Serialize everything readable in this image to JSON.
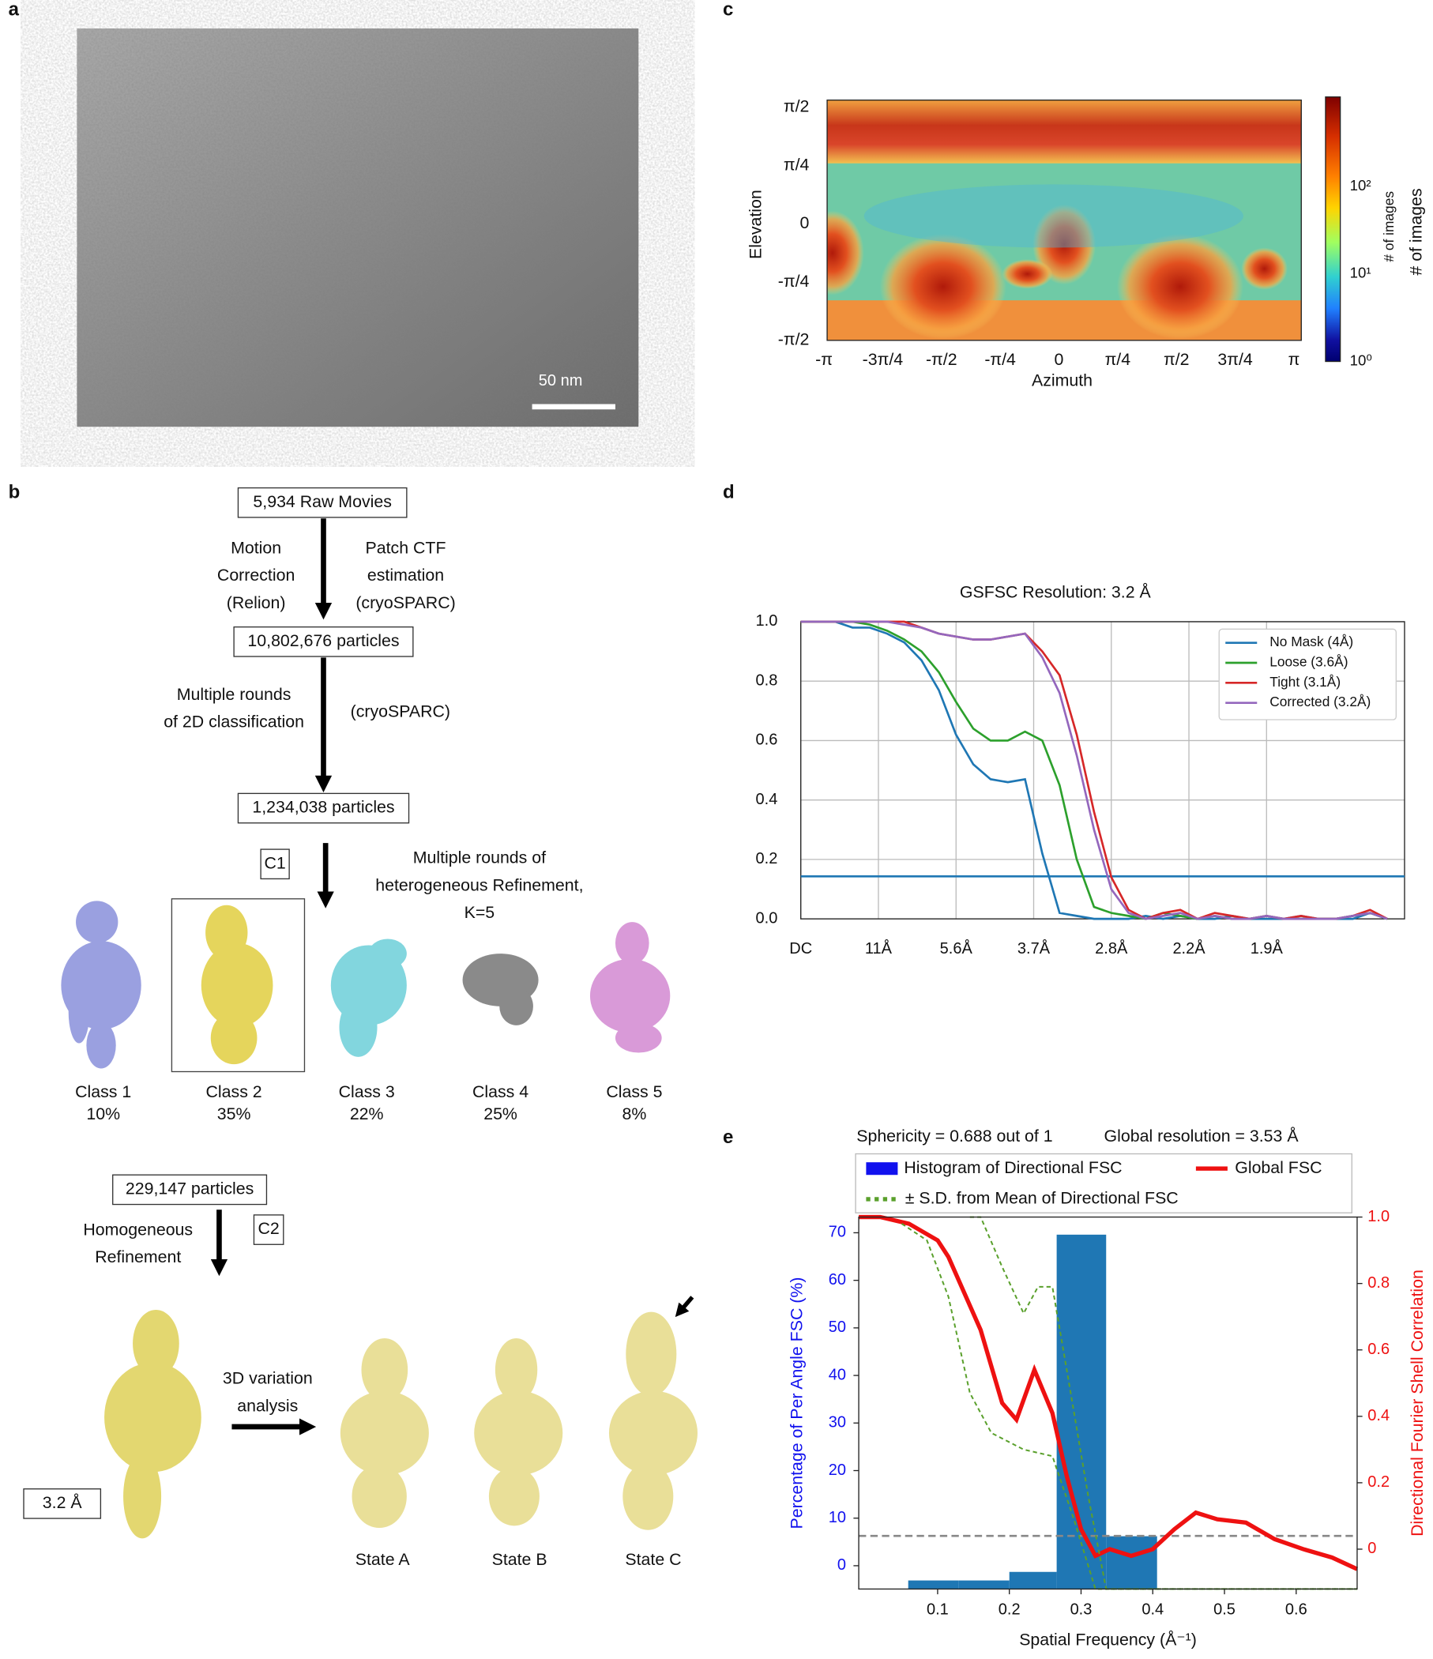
{
  "panel_labels": [
    "a",
    "b",
    "c",
    "d",
    "e"
  ],
  "micrograph": {
    "scale_bar": "50 nm"
  },
  "workflow": {
    "nodes": [
      "5,934 Raw Movies",
      "10,802,676 particles",
      "1,234,038 particles",
      "229,147 particles"
    ],
    "step1_left": [
      "Motion",
      "Correction",
      "(Relion)"
    ],
    "step1_right": [
      "Patch CTF",
      "estimation",
      "(cryoSPARC)"
    ],
    "step2_left": [
      "Multiple rounds",
      "of 2D classification"
    ],
    "step2_right": "(cryoSPARC)",
    "symmetry_1": "C1",
    "step3": [
      "Multiple rounds of",
      "heterogeneous Refinement,",
      "K=5"
    ],
    "classes": [
      {
        "name": "Class 1",
        "share": "10%"
      },
      {
        "name": "Class 2",
        "share": "35%"
      },
      {
        "name": "Class 3",
        "share": "22%"
      },
      {
        "name": "Class 4",
        "share": "25%"
      },
      {
        "name": "Class 5",
        "share": "8%"
      }
    ],
    "symmetry_2": "C2",
    "step4": [
      "Homogeneous",
      "Refinement"
    ],
    "resolution": "3.2 Å",
    "step5": [
      "3D variation",
      "analysis"
    ],
    "states": [
      "State A",
      "State B",
      "State C"
    ]
  },
  "viewing_distribution": {
    "y_ticks": [
      "π/2",
      "π/4",
      "0",
      "-π/4",
      "-π/2"
    ],
    "x_ticks": [
      "-π",
      "-3π/4",
      "-π/2",
      "-π/4",
      "0",
      "π/4",
      "π/2",
      "3π/4",
      "π"
    ],
    "x_label": "Azimuth",
    "y_label": "Elevation",
    "colorbar_ticks": [
      "10⁰",
      "10¹",
      "10²"
    ],
    "colorbar_label": "# of images"
  },
  "chart_data": [
    {
      "type": "line",
      "title": "GSFSC Resolution: 3.2 Å",
      "x": [
        0,
        0.02,
        0.04,
        0.06,
        0.08,
        0.1,
        0.12,
        0.14,
        0.16,
        0.18,
        0.2,
        0.22,
        0.24,
        0.26,
        0.28,
        0.3,
        0.32,
        0.34,
        0.36,
        0.38,
        0.4,
        0.42,
        0.44,
        0.46,
        0.48,
        0.5,
        0.52,
        0.54,
        0.56,
        0.58,
        0.6,
        0.62,
        0.64,
        0.66,
        0.68
      ],
      "xlim": [
        0,
        0.7
      ],
      "xticks": [
        {
          "value": 0,
          "label": "DC"
        },
        {
          "value": 0.09,
          "label": "11Å"
        },
        {
          "value": 0.18,
          "label": "5.6Å"
        },
        {
          "value": 0.27,
          "label": "3.7Å"
        },
        {
          "value": 0.36,
          "label": "2.8Å"
        },
        {
          "value": 0.45,
          "label": "2.2Å"
        },
        {
          "value": 0.54,
          "label": "1.9Å"
        }
      ],
      "ylim": [
        0,
        1
      ],
      "yticks": [
        {
          "value": 0,
          "label": "0.0"
        },
        0.2,
        0.4,
        0.6,
        0.8,
        {
          "value": 1,
          "label": "1.0"
        }
      ],
      "grid": true,
      "legend": "upper right",
      "threshold": 0.143,
      "threshold_color": "#1f77b4",
      "series": [
        {
          "name": "No Mask (4Å)",
          "color": "#1f77b4",
          "values": [
            1,
            1,
            1,
            0.98,
            0.98,
            0.96,
            0.93,
            0.87,
            0.77,
            0.62,
            0.52,
            0.47,
            0.46,
            0.47,
            0.22,
            0.02,
            0.01,
            0,
            0,
            0,
            0.01,
            0,
            0.01,
            0,
            0,
            0.01,
            0,
            0,
            0,
            0.01,
            0,
            0,
            0,
            0.02,
            0
          ]
        },
        {
          "name": "Loose (3.6Å)",
          "color": "#2ca02c",
          "values": [
            1,
            1,
            1,
            1,
            0.99,
            0.97,
            0.94,
            0.9,
            0.83,
            0.73,
            0.64,
            0.6,
            0.6,
            0.63,
            0.6,
            0.45,
            0.2,
            0.04,
            0.02,
            0.01,
            0,
            0.02,
            0.01,
            0,
            0.01,
            0,
            0,
            0.01,
            0,
            0,
            0,
            0,
            0.01,
            0.02,
            0
          ]
        },
        {
          "name": "Tight (3.1Å)",
          "color": "#d62728",
          "values": [
            1,
            1,
            1,
            1,
            1,
            1,
            1,
            0.98,
            0.96,
            0.95,
            0.94,
            0.94,
            0.95,
            0.96,
            0.9,
            0.82,
            0.62,
            0.36,
            0.14,
            0.03,
            0,
            0.02,
            0.03,
            0,
            0.02,
            0.01,
            0,
            0.01,
            0,
            0.01,
            0,
            0,
            0.01,
            0.03,
            0
          ]
        },
        {
          "name": "Corrected (3.2Å)",
          "color": "#9467bd",
          "values": [
            1,
            1,
            1,
            1,
            1,
            1,
            0.99,
            0.98,
            0.96,
            0.95,
            0.94,
            0.94,
            0.95,
            0.96,
            0.88,
            0.76,
            0.55,
            0.3,
            0.1,
            0.02,
            0,
            0.01,
            0.02,
            0,
            0.01,
            0,
            0,
            0.01,
            0,
            0,
            0,
            0,
            0.01,
            0.02,
            0
          ]
        }
      ]
    },
    {
      "type": "histogram",
      "title": "Sphericity = 0.688 out of 1",
      "subtitle": "Global resolution = 3.53 Å",
      "name": "Histogram of Directional FSC",
      "color": "#1f77b4",
      "bins": [
        0.059,
        0.129,
        0.2,
        0.266,
        0.335,
        0.406
      ],
      "values": [
        -3.1,
        -3.1,
        -1.3,
        69.6,
        6.2
      ],
      "x_label": "Spatial Frequency (Å⁻¹)",
      "y_label": "Percentage of Per Angle FSC (%)",
      "y2_label": "Directional Fourier Shell Correlation",
      "xlim": [
        -0.01,
        0.685
      ],
      "xticks": [
        0.1,
        0.2,
        0.3,
        0.4,
        0.5,
        0.6
      ],
      "ylim": [
        -4.9,
        73.3
      ],
      "yticks": [
        0,
        10,
        20,
        30,
        40,
        50,
        60,
        70
      ],
      "y2lim": [
        -0.12,
        1
      ],
      "y2ticks": [
        0,
        0.2,
        0.4,
        0.6,
        0.8,
        {
          "value": 1,
          "label": "1.0"
        }
      ],
      "reference_line": 0.04,
      "series": [
        {
          "name": "Global FSC",
          "color": "#ee1111",
          "axis": "y2",
          "x": [
            -0.01,
            0.02,
            0.06,
            0.1,
            0.115,
            0.16,
            0.19,
            0.21,
            0.235,
            0.26,
            0.28,
            0.3,
            0.32,
            0.34,
            0.37,
            0.4,
            0.43,
            0.46,
            0.49,
            0.53,
            0.57,
            0.61,
            0.65,
            0.685
          ],
          "values": [
            1,
            1,
            0.98,
            0.93,
            0.88,
            0.66,
            0.44,
            0.39,
            0.54,
            0.41,
            0.22,
            0.06,
            -0.02,
            0,
            -0.02,
            0,
            0.06,
            0.11,
            0.09,
            0.08,
            0.03,
            0,
            -0.025,
            -0.06
          ]
        },
        {
          "name": "± S.D. from Mean of Directional FSC",
          "color": "#5aa02c",
          "axis": "y2",
          "x": [
            0.145,
            0.16,
            0.19,
            0.22,
            0.24,
            0.26,
            0.28,
            0.31,
            0.335,
            0.36,
            0.685
          ],
          "values": [
            1,
            1,
            0.85,
            0.71,
            0.79,
            0.79,
            0.54,
            0.16,
            -0.12,
            -0.12,
            -0.12
          ]
        },
        {
          "color": "#5aa02c",
          "axis": "y2",
          "x": [
            0.05,
            0.085,
            0.115,
            0.145,
            0.175,
            0.22,
            0.26,
            0.29,
            0.32,
            0.34,
            0.685
          ],
          "values": [
            0.98,
            0.93,
            0.76,
            0.47,
            0.35,
            0.3,
            0.28,
            0.09,
            -0.12,
            -0.12,
            -0.12
          ]
        }
      ]
    }
  ]
}
